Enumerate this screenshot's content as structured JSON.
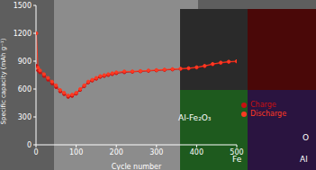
{
  "chart_data": {
    "type": "line",
    "x_label": "Cycle number",
    "y_label": "Specific capacity (mAh g⁻¹)",
    "xlim": [
      0,
      500
    ],
    "xticks": [
      0,
      100,
      200,
      300,
      400,
      500
    ],
    "ylim": [
      0,
      1500
    ],
    "yticks": [
      0,
      300,
      600,
      900,
      1200,
      1500
    ],
    "grid": false,
    "legend": "right",
    "annotations": [
      "Al-Fe₂O₃",
      "O",
      "Fe",
      "Al"
    ],
    "x": [
      1,
      5,
      10,
      20,
      30,
      40,
      50,
      60,
      70,
      80,
      90,
      100,
      110,
      120,
      130,
      140,
      150,
      160,
      170,
      180,
      190,
      200,
      220,
      240,
      260,
      280,
      300,
      320,
      340,
      360,
      380,
      400,
      420,
      440,
      460,
      480,
      500
    ],
    "series": [
      {
        "name": "Charge",
        "color": "#c81010",
        "marker": "circle",
        "values": [
          850,
          800,
          780,
          740,
          700,
          660,
          620,
          575,
          545,
          515,
          525,
          550,
          590,
          630,
          670,
          690,
          710,
          730,
          740,
          750,
          760,
          770,
          780,
          785,
          790,
          795,
          800,
          805,
          810,
          815,
          820,
          830,
          845,
          865,
          880,
          890,
          895
        ]
      },
      {
        "name": "Discharge",
        "color": "#ff3a22",
        "marker": "circle",
        "values": [
          1200,
          830,
          800,
          760,
          720,
          680,
          640,
          590,
          560,
          530,
          540,
          560,
          600,
          640,
          680,
          700,
          720,
          740,
          750,
          760,
          770,
          780,
          790,
          790,
          795,
          800,
          805,
          810,
          815,
          820,
          825,
          835,
          850,
          870,
          885,
          895,
          900
        ]
      }
    ]
  }
}
